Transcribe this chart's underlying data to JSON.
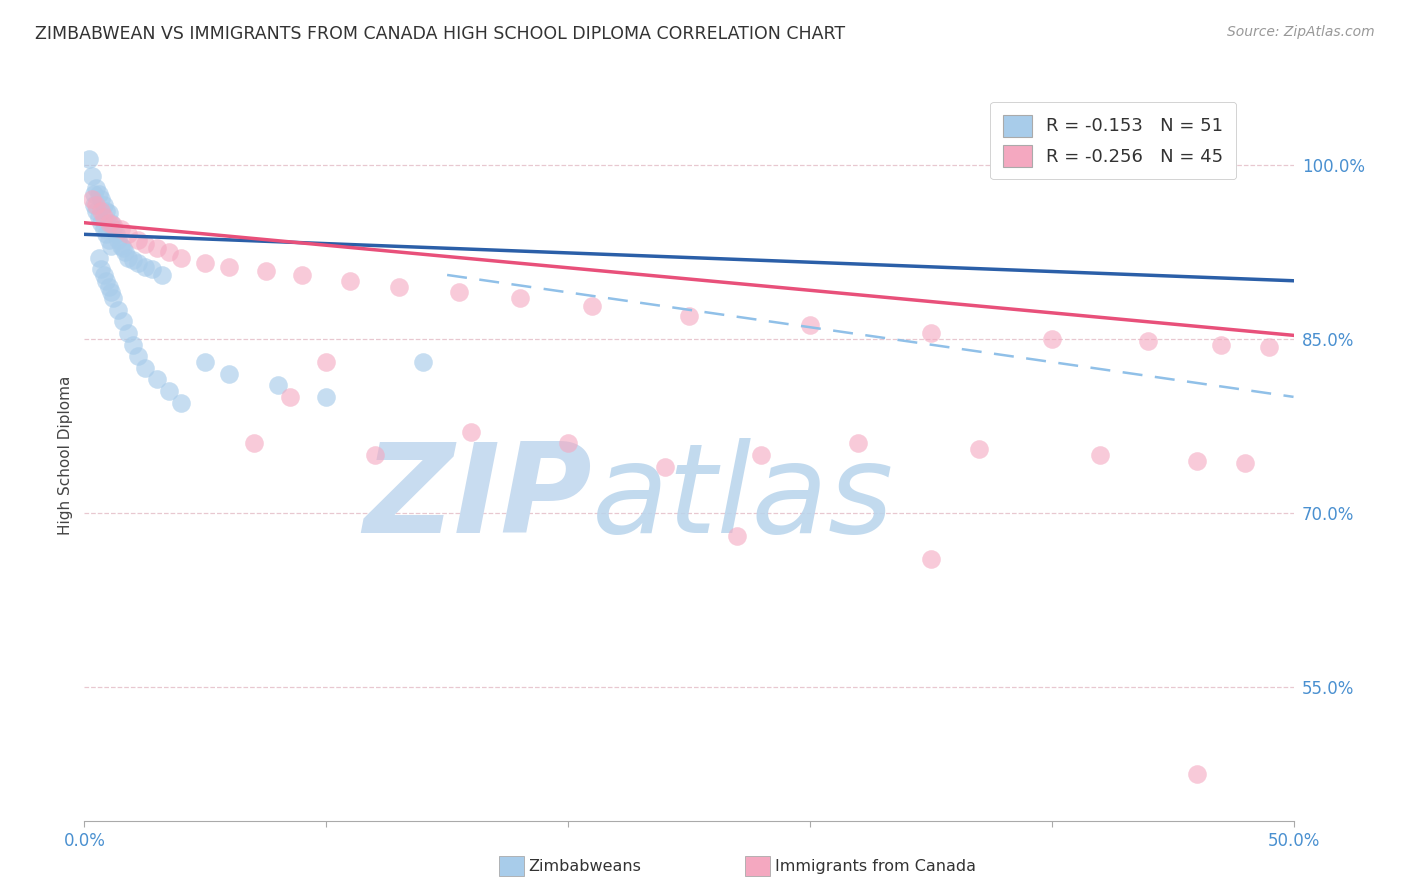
{
  "title": "ZIMBABWEAN VS IMMIGRANTS FROM CANADA HIGH SCHOOL DIPLOMA CORRELATION CHART",
  "source": "Source: ZipAtlas.com",
  "ylabel": "High School Diploma",
  "x_min": 0.0,
  "x_max": 0.5,
  "y_min": 0.435,
  "y_max": 1.065,
  "right_ytick_vals": [
    0.55,
    0.7,
    0.85,
    1.0
  ],
  "right_yticklabels": [
    "55.0%",
    "70.0%",
    "85.0%",
    "100.0%"
  ],
  "xtick_vals": [
    0.0,
    0.1,
    0.2,
    0.3,
    0.4,
    0.5
  ],
  "xtick_labels": [
    "0.0%",
    "",
    "",
    "",
    "",
    "50.0%"
  ],
  "R_blue": -0.153,
  "N_blue": 51,
  "R_pink": -0.256,
  "N_pink": 45,
  "blue_scatter_color": "#A8CCEA",
  "pink_scatter_color": "#F4A8C0",
  "blue_line_color": "#2B5FA8",
  "pink_line_color": "#E8507A",
  "dashed_line_color": "#90C0E8",
  "grid_color": "#E8C8D0",
  "watermark_zip_color": "#C8DCF0",
  "watermark_atlas_color": "#B8D4EC",
  "legend_label_blue": "R = -0.153   N = 51",
  "legend_label_pink": "R = -0.256   N = 45",
  "bottom_label1": "Zimbabweans",
  "bottom_label2": "Immigrants from Canada",
  "blue_trend_y0": 0.94,
  "blue_trend_y1": 0.9,
  "pink_trend_y0": 0.95,
  "pink_trend_y1": 0.853,
  "dash_trend_y0": 0.95,
  "dash_trend_y1": 0.8,
  "blue_scatter_x": [
    0.002,
    0.003,
    0.004,
    0.004,
    0.005,
    0.005,
    0.006,
    0.006,
    0.007,
    0.007,
    0.008,
    0.008,
    0.009,
    0.009,
    0.01,
    0.01,
    0.011,
    0.011,
    0.012,
    0.013,
    0.014,
    0.015,
    0.016,
    0.017,
    0.018,
    0.02,
    0.022,
    0.025,
    0.028,
    0.032,
    0.006,
    0.007,
    0.008,
    0.009,
    0.01,
    0.011,
    0.012,
    0.014,
    0.016,
    0.018,
    0.02,
    0.022,
    0.025,
    0.03,
    0.035,
    0.04,
    0.05,
    0.06,
    0.08,
    0.1,
    0.14
  ],
  "blue_scatter_y": [
    1.005,
    0.99,
    0.975,
    0.965,
    0.98,
    0.96,
    0.975,
    0.955,
    0.97,
    0.95,
    0.965,
    0.945,
    0.96,
    0.94,
    0.958,
    0.935,
    0.95,
    0.93,
    0.945,
    0.94,
    0.935,
    0.93,
    0.928,
    0.925,
    0.92,
    0.918,
    0.915,
    0.912,
    0.91,
    0.905,
    0.92,
    0.91,
    0.905,
    0.9,
    0.895,
    0.89,
    0.885,
    0.875,
    0.865,
    0.855,
    0.845,
    0.835,
    0.825,
    0.815,
    0.805,
    0.795,
    0.83,
    0.82,
    0.81,
    0.8,
    0.83
  ],
  "pink_scatter_x": [
    0.003,
    0.005,
    0.007,
    0.008,
    0.01,
    0.012,
    0.015,
    0.018,
    0.022,
    0.025,
    0.03,
    0.035,
    0.04,
    0.05,
    0.06,
    0.075,
    0.09,
    0.11,
    0.13,
    0.155,
    0.18,
    0.21,
    0.25,
    0.3,
    0.35,
    0.4,
    0.44,
    0.47,
    0.49,
    0.07,
    0.085,
    0.1,
    0.12,
    0.16,
    0.2,
    0.24,
    0.28,
    0.32,
    0.37,
    0.42,
    0.46,
    0.48,
    0.27,
    0.35,
    0.46
  ],
  "pink_scatter_y": [
    0.97,
    0.965,
    0.96,
    0.955,
    0.95,
    0.948,
    0.945,
    0.94,
    0.935,
    0.932,
    0.928,
    0.925,
    0.92,
    0.915,
    0.912,
    0.908,
    0.905,
    0.9,
    0.895,
    0.89,
    0.885,
    0.878,
    0.87,
    0.862,
    0.855,
    0.85,
    0.848,
    0.845,
    0.843,
    0.76,
    0.8,
    0.83,
    0.75,
    0.77,
    0.76,
    0.74,
    0.75,
    0.76,
    0.755,
    0.75,
    0.745,
    0.743,
    0.68,
    0.66,
    0.475
  ]
}
